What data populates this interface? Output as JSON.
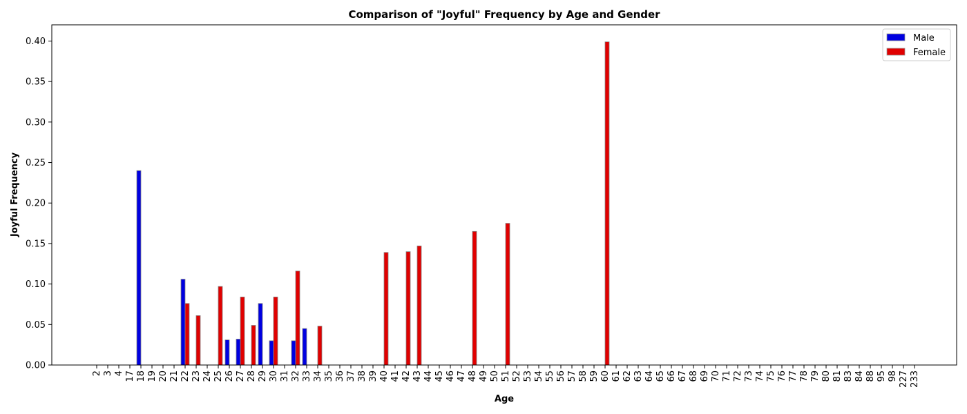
{
  "chart_data": {
    "type": "bar",
    "title": "Comparison of \"Joyful\" Frequency by Age and Gender",
    "xlabel": "Age",
    "ylabel": "Joyful Frequency",
    "ylim": [
      0,
      0.42
    ],
    "yticks": [
      "0.00",
      "0.05",
      "0.10",
      "0.15",
      "0.20",
      "0.25",
      "0.30",
      "0.35",
      "0.40"
    ],
    "ytick_values": [
      0,
      0.05,
      0.1,
      0.15,
      0.2,
      0.25,
      0.3,
      0.35,
      0.4
    ],
    "grid": false,
    "legend_position": "top-right",
    "categories": [
      "2",
      "3",
      "4",
      "17",
      "18",
      "19",
      "20",
      "21",
      "22",
      "23",
      "24",
      "25",
      "26",
      "27",
      "28",
      "29",
      "30",
      "31",
      "32",
      "33",
      "34",
      "35",
      "36",
      "37",
      "38",
      "39",
      "40",
      "41",
      "42",
      "43",
      "44",
      "45",
      "46",
      "47",
      "48",
      "49",
      "50",
      "51",
      "52",
      "53",
      "54",
      "55",
      "56",
      "57",
      "58",
      "59",
      "60",
      "61",
      "62",
      "63",
      "64",
      "65",
      "66",
      "67",
      "68",
      "69",
      "70",
      "71",
      "72",
      "73",
      "74",
      "75",
      "76",
      "77",
      "78",
      "79",
      "80",
      "81",
      "83",
      "84",
      "88",
      "95",
      "98",
      "227",
      "233"
    ],
    "series": [
      {
        "name": "Male",
        "color": "#0000e0",
        "values": [
          0,
          0,
          0,
          0,
          0.24,
          0,
          0,
          0,
          0.106,
          0,
          0,
          0,
          0.031,
          0.032,
          0,
          0.076,
          0.03,
          0,
          0.03,
          0.045,
          0,
          0,
          0,
          0,
          0,
          0,
          0,
          0,
          0,
          0,
          0,
          0,
          0,
          0,
          0,
          0,
          0,
          0,
          0,
          0,
          0,
          0,
          0,
          0,
          0,
          0,
          0,
          0,
          0,
          0,
          0,
          0,
          0,
          0,
          0,
          0,
          0,
          0,
          0,
          0,
          0,
          0,
          0,
          0,
          0,
          0,
          0,
          0,
          0,
          0,
          0,
          0,
          0,
          0,
          0
        ]
      },
      {
        "name": "Female",
        "color": "#e00000",
        "values": [
          0,
          0,
          0,
          0,
          0,
          0,
          0,
          0,
          0.076,
          0.061,
          0,
          0.097,
          0,
          0.084,
          0.049,
          0,
          0.084,
          0,
          0.116,
          0,
          0.048,
          0,
          0,
          0,
          0,
          0,
          0.139,
          0,
          0.14,
          0.147,
          0,
          0,
          0,
          0,
          0.165,
          0,
          0,
          0.175,
          0,
          0,
          0,
          0,
          0,
          0,
          0,
          0,
          0.399,
          0,
          0,
          0,
          0,
          0,
          0,
          0,
          0,
          0,
          0,
          0,
          0,
          0,
          0,
          0,
          0,
          0,
          0,
          0,
          0,
          0,
          0,
          0,
          0,
          0,
          0,
          0,
          0
        ]
      }
    ]
  }
}
